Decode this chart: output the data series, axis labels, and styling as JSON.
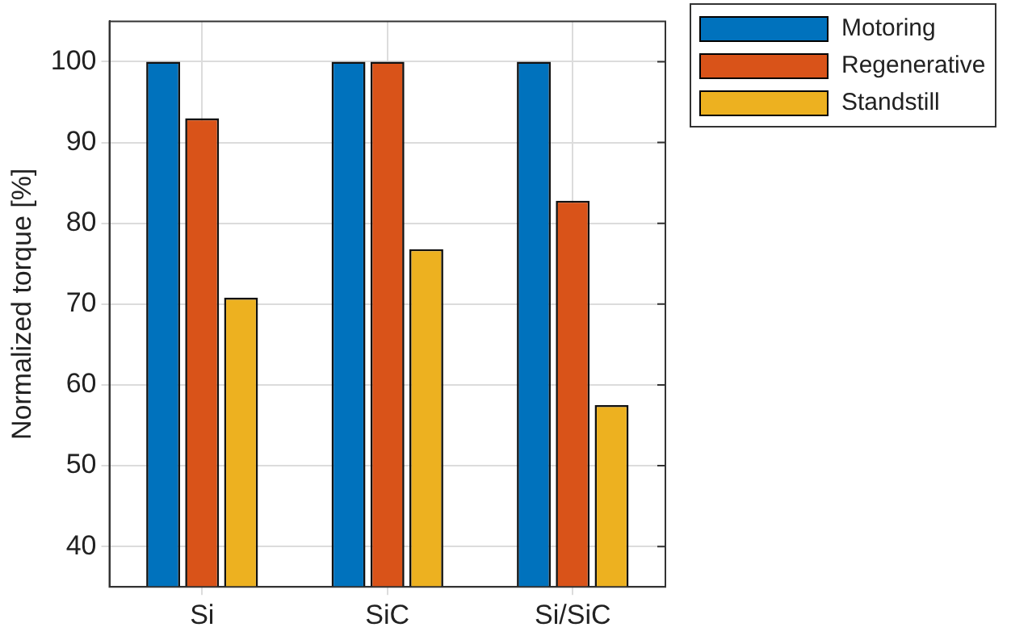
{
  "chart_data": {
    "type": "bar",
    "ylabel": "Normalized torque [%]",
    "categories": [
      "Si",
      "SiC",
      "Si/SiC"
    ],
    "series": [
      {
        "name": "Motoring",
        "color": "#0072bd",
        "values": [
          100,
          100,
          100
        ]
      },
      {
        "name": "Regenerative",
        "color": "#d95319",
        "values": [
          93.0,
          100,
          82.8
        ]
      },
      {
        "name": "Standstill",
        "color": "#edb120",
        "values": [
          70.8,
          76.8,
          57.5
        ]
      }
    ],
    "ylim": [
      35,
      105
    ],
    "yticks": [
      40,
      50,
      60,
      70,
      80,
      90,
      100
    ],
    "grid": true,
    "legend": "top right"
  }
}
